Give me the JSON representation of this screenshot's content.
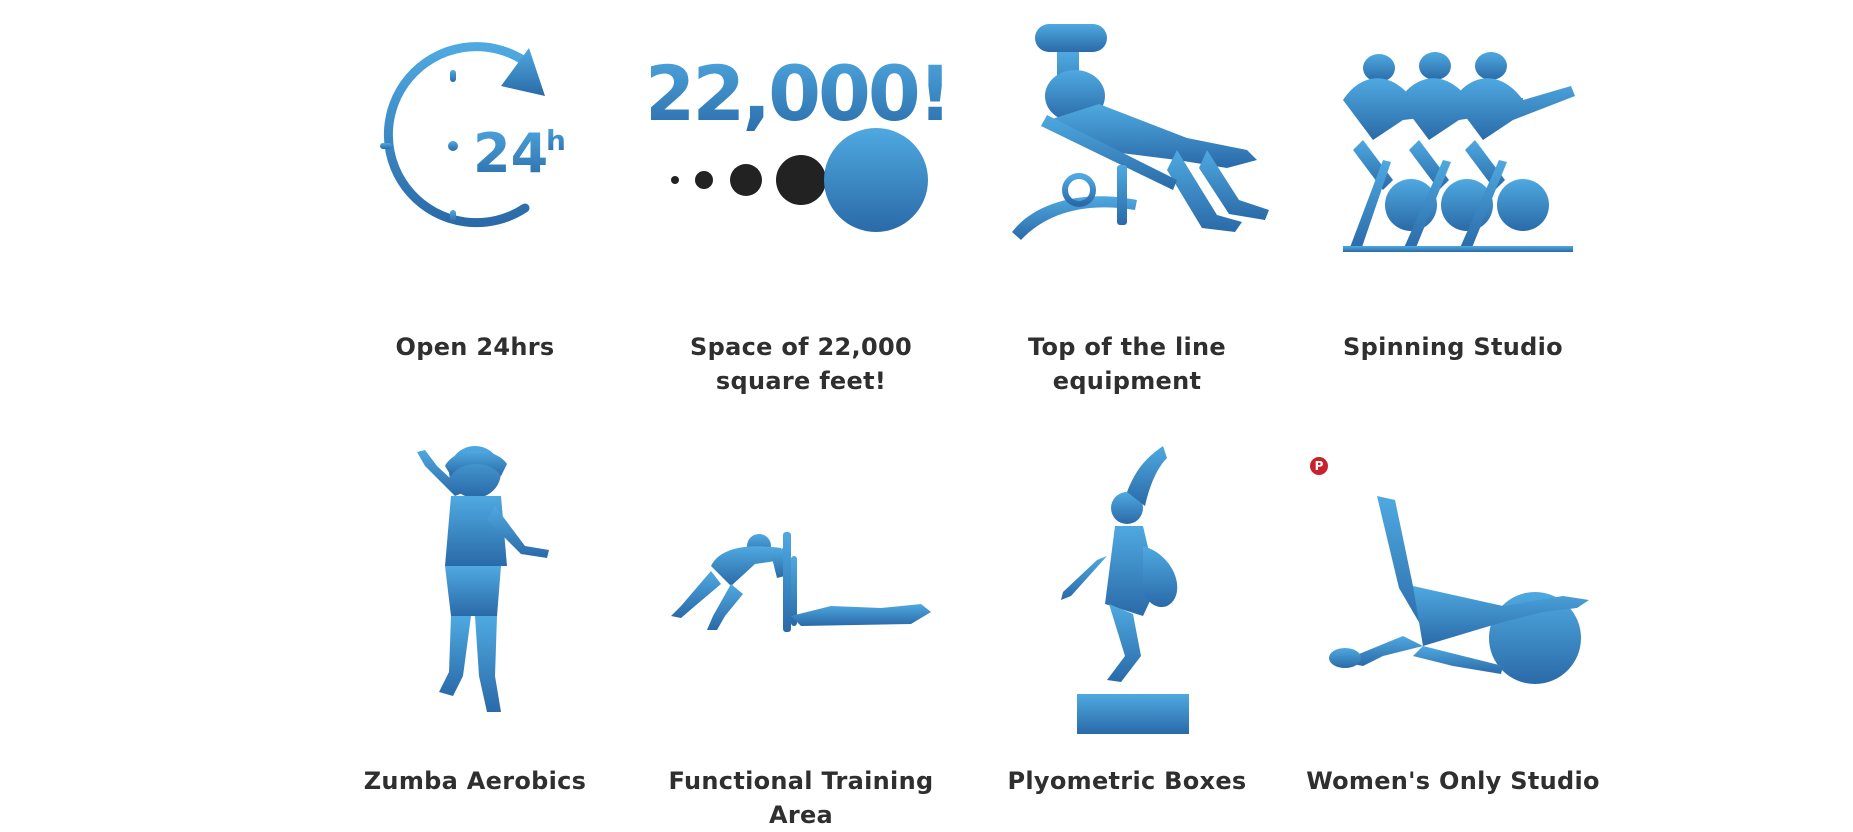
{
  "colors": {
    "icon_gradient_top": "#4fa9e0",
    "icon_gradient_bottom": "#2a6aa8",
    "label_text": "#2f2f2f",
    "dark_dots": "#222222",
    "pinterest_red": "#c8232c"
  },
  "features": [
    {
      "icon": "clock-24h-icon",
      "label": "Open 24hrs"
    },
    {
      "icon": "space-22000-icon",
      "label": "Space of 22,000 square feet!",
      "icon_text": "22,000!"
    },
    {
      "icon": "bench-press-icon",
      "label": "Top of the line equipment"
    },
    {
      "icon": "spinning-bikes-icon",
      "label": "Spinning Studio"
    },
    {
      "icon": "zumba-dancer-icon",
      "label": "Zumba Aerobics"
    },
    {
      "icon": "sled-push-icon",
      "label": "Functional Training Area"
    },
    {
      "icon": "box-jump-icon",
      "label": "Plyometric Boxes"
    },
    {
      "icon": "stability-ball-icon",
      "label": "Women's Only Studio"
    }
  ],
  "clock_icon_text": "24",
  "clock_icon_sup": "h",
  "pinterest": {
    "icon": "pinterest-icon",
    "glyph": "P"
  }
}
